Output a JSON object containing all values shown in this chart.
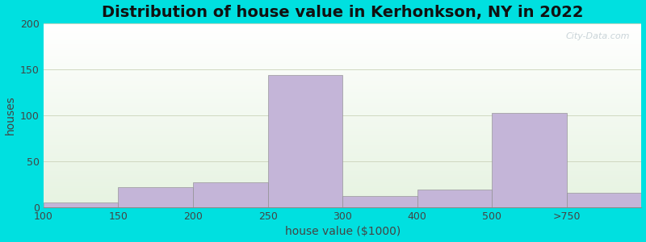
{
  "title": "Distribution of house value in Kerhonkson, NY in 2022",
  "xlabel": "house value ($1000)",
  "ylabel": "houses",
  "categories": [
    "100",
    "150",
    "200",
    "250",
    "300",
    "400",
    "500",
    ">750"
  ],
  "values": [
    5,
    22,
    27,
    144,
    12,
    19,
    103,
    16
  ],
  "bar_color": "#c4b5d8",
  "bar_edge_color": "#c4b5d8",
  "ylim": [
    0,
    200
  ],
  "yticks": [
    0,
    50,
    100,
    150,
    200
  ],
  "background_outer": "#00e0e0",
  "grid_color": "#d0d8c0",
  "title_fontsize": 14,
  "axis_label_fontsize": 10,
  "tick_fontsize": 9,
  "watermark_text": "City-Data.com"
}
